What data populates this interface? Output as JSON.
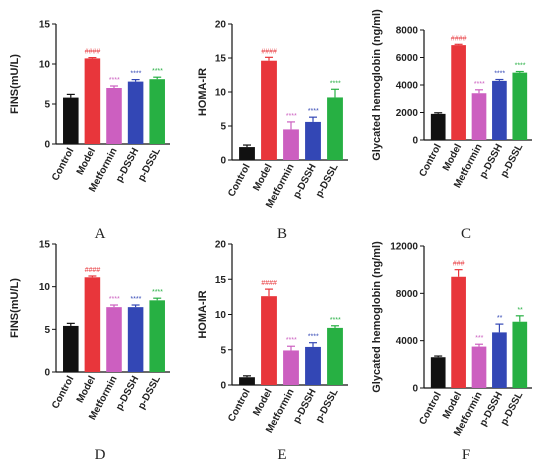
{
  "colors": {
    "control": "#111111",
    "model": "#e8363b",
    "metformin": "#cc5fc0",
    "p_dssh": "#3347b5",
    "p_dssl": "#27b043",
    "sig_model": "#e8363b",
    "sig_metformin": "#cc5fc0",
    "sig_p_dssh": "#3347b5",
    "sig_p_dssl": "#27b043"
  },
  "chart_data": [
    {
      "panel": "A",
      "type": "bar",
      "categories": [
        "Control",
        "Model",
        "Metformin",
        "p-DSSH",
        "p-DSSL"
      ],
      "values": [
        5.8,
        10.7,
        7.0,
        7.8,
        8.1
      ],
      "errors": [
        0.4,
        0.1,
        0.25,
        0.25,
        0.25
      ],
      "significance": [
        "",
        "####",
        "****",
        "****",
        "****"
      ],
      "ylabel": "FINS(mU/L)",
      "ylim": [
        0,
        15
      ],
      "yticks": [
        0,
        5,
        10,
        15
      ]
    },
    {
      "panel": "B",
      "type": "bar",
      "categories": [
        "Control",
        "Model",
        "Metformin",
        "p-DSSH",
        "p-DSSL"
      ],
      "values": [
        1.9,
        14.6,
        4.5,
        5.6,
        9.2
      ],
      "errors": [
        0.3,
        0.5,
        1.1,
        0.7,
        1.2
      ],
      "significance": [
        "",
        "####",
        "****",
        "****",
        "****"
      ],
      "ylabel": "HOMA-IR",
      "ylim": [
        0,
        20
      ],
      "yticks": [
        0,
        5,
        10,
        15,
        20
      ]
    },
    {
      "panel": "C",
      "type": "bar",
      "categories": [
        "Control",
        "Model",
        "Metformin",
        "p-DSSH",
        "p-DSSL"
      ],
      "values": [
        1900,
        6900,
        3400,
        4300,
        4900
      ],
      "errors": [
        80,
        60,
        250,
        100,
        80
      ],
      "significance": [
        "",
        "####",
        "****",
        "****",
        "****"
      ],
      "ylabel": "Glycated hemoglobin (ng/ml)",
      "ylim": [
        0,
        8000
      ],
      "yticks": [
        0,
        2000,
        4000,
        6000,
        8000
      ]
    },
    {
      "panel": "D",
      "type": "bar",
      "categories": [
        "Control",
        "Model",
        "Metformin",
        "p-DSSH",
        "p-DSSL"
      ],
      "values": [
        5.4,
        11.1,
        7.6,
        7.6,
        8.4
      ],
      "errors": [
        0.3,
        0.15,
        0.25,
        0.25,
        0.25
      ],
      "significance": [
        "",
        "####",
        "****",
        "****",
        "****"
      ],
      "ylabel": "FINS(mU/L)",
      "ylim": [
        0,
        15
      ],
      "yticks": [
        0,
        5,
        10,
        15
      ]
    },
    {
      "panel": "E",
      "type": "bar",
      "categories": [
        "Control",
        "Model",
        "Metformin",
        "p-DSSH",
        "p-DSSL"
      ],
      "values": [
        1.1,
        12.6,
        4.9,
        5.4,
        8.1
      ],
      "errors": [
        0.2,
        1.0,
        0.6,
        0.6,
        0.3
      ],
      "significance": [
        "",
        "####",
        "****",
        "****",
        "****"
      ],
      "ylabel": "HOMA-IR",
      "ylim": [
        0,
        20
      ],
      "yticks": [
        0,
        5,
        10,
        15,
        20
      ]
    },
    {
      "panel": "F",
      "type": "bar",
      "categories": [
        "Control",
        "Model",
        "Metformin",
        "p-DSSH",
        "p-DSSL"
      ],
      "values": [
        2600,
        9400,
        3500,
        4700,
        5600
      ],
      "errors": [
        100,
        600,
        200,
        700,
        500
      ],
      "significance": [
        "",
        "###",
        "***",
        "**",
        "**"
      ],
      "ylabel": "Glycated hemoglobin (ng/ml)",
      "ylim": [
        0,
        12000
      ],
      "yticks": [
        0,
        4000,
        8000,
        12000
      ]
    }
  ]
}
